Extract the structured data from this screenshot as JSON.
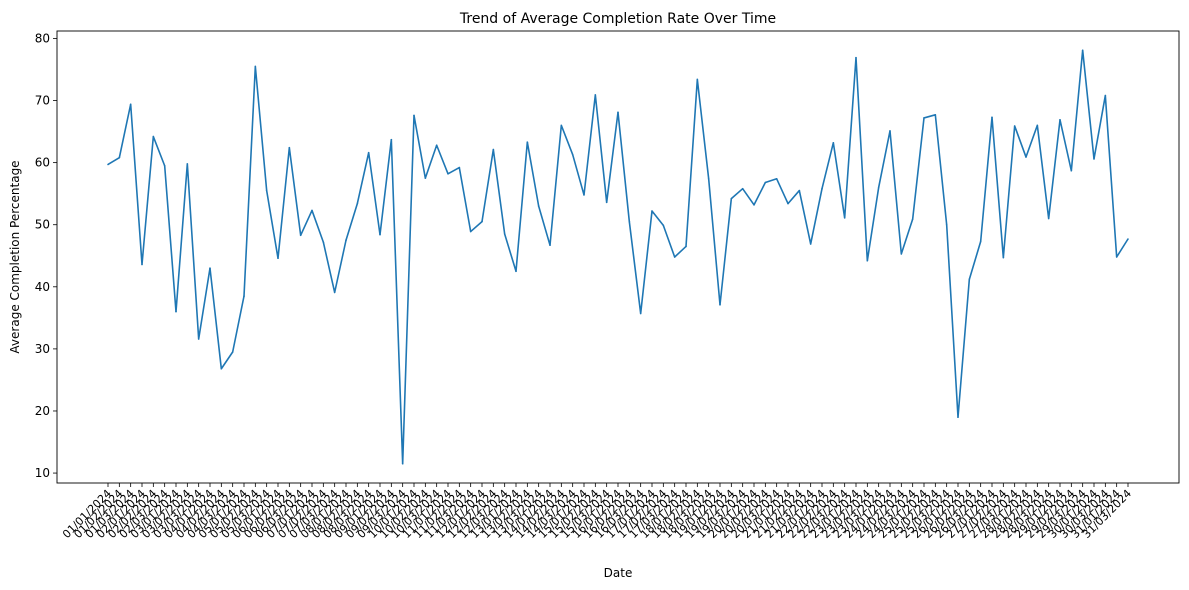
{
  "chart_data": {
    "type": "line",
    "title": "Trend of Average Completion Rate Over Time",
    "xlabel": "Date",
    "ylabel": "Average Completion Percentage",
    "ylim": [
      8.4,
      81.2
    ],
    "yticks": [
      10,
      20,
      30,
      40,
      50,
      60,
      70,
      80
    ],
    "grid": false,
    "legend": "none",
    "series_color": "#1f77b4",
    "x": [
      "01/01/2024",
      "01/02/2024",
      "01/03/2024",
      "02/01/2024",
      "02/02/2024",
      "02/03/2024",
      "03/01/2024",
      "03/02/2024",
      "03/03/2024",
      "04/01/2024",
      "04/02/2024",
      "04/03/2024",
      "05/01/2024",
      "05/02/2024",
      "05/03/2024",
      "06/01/2024",
      "06/02/2024",
      "06/03/2024",
      "07/01/2024",
      "07/02/2024",
      "07/03/2024",
      "08/01/2024",
      "08/02/2024",
      "08/03/2024",
      "09/01/2024",
      "09/02/2024",
      "09/03/2024",
      "10/01/2024",
      "10/02/2024",
      "10/03/2024",
      "11/01/2024",
      "11/02/2024",
      "11/03/2024",
      "12/01/2024",
      "12/02/2024",
      "12/03/2024",
      "13/01/2024",
      "13/02/2024",
      "13/03/2024",
      "14/01/2024",
      "14/02/2024",
      "14/03/2024",
      "15/01/2024",
      "15/02/2024",
      "15/03/2024",
      "16/01/2024",
      "16/02/2024",
      "16/03/2024",
      "17/01/2024",
      "17/02/2024",
      "17/03/2024",
      "18/01/2024",
      "18/02/2024",
      "18/03/2024",
      "19/01/2024",
      "19/02/2024",
      "19/03/2024",
      "20/01/2024",
      "20/02/2024",
      "20/03/2024",
      "21/01/2024",
      "21/02/2024",
      "21/03/2024",
      "22/01/2024",
      "22/02/2024",
      "22/03/2024",
      "23/01/2024",
      "23/02/2024",
      "23/03/2024",
      "24/01/2024",
      "24/02/2024",
      "24/03/2024",
      "25/01/2024",
      "25/02/2024",
      "25/03/2024",
      "26/01/2024",
      "26/02/2024",
      "26/03/2024",
      "27/01/2024",
      "27/02/2024",
      "27/03/2024",
      "28/01/2024",
      "28/02/2024",
      "28/03/2024",
      "29/01/2024",
      "29/02/2024",
      "29/03/2024",
      "30/01/2024",
      "30/03/2024",
      "31/01/2024",
      "31/03/2024"
    ],
    "series": [
      {
        "values": [
          59.7,
          60.8,
          69.4,
          43.6,
          64.2,
          59.5,
          36.0,
          59.8,
          31.6,
          43.0,
          26.8,
          29.5,
          38.5,
          75.5,
          55.5,
          44.6,
          62.4,
          48.3,
          52.3,
          47.2,
          39.1,
          47.5,
          53.4,
          61.6,
          48.4,
          63.7,
          11.5,
          67.6,
          57.5,
          62.8,
          58.2,
          59.2,
          48.9,
          50.5,
          62.1,
          48.5,
          42.5,
          63.3,
          53.0,
          46.7,
          66.0,
          61.3,
          54.8,
          70.9,
          53.6,
          68.1,
          50.5,
          35.7,
          52.2,
          49.9,
          44.8,
          46.5,
          73.4,
          57.4,
          37.1,
          54.2,
          55.8,
          53.2,
          56.8,
          57.4,
          53.4,
          55.5,
          46.9,
          55.8,
          63.2,
          51.1,
          76.9,
          44.2,
          56.0,
          65.1,
          45.3,
          50.9,
          67.2,
          67.7,
          50.0,
          19.0,
          41.2,
          47.3,
          67.3,
          44.7,
          65.9,
          60.9,
          66.0,
          51.0,
          66.9,
          58.7,
          78.1,
          60.6,
          70.8,
          44.8,
          47.7
        ]
      }
    ]
  }
}
